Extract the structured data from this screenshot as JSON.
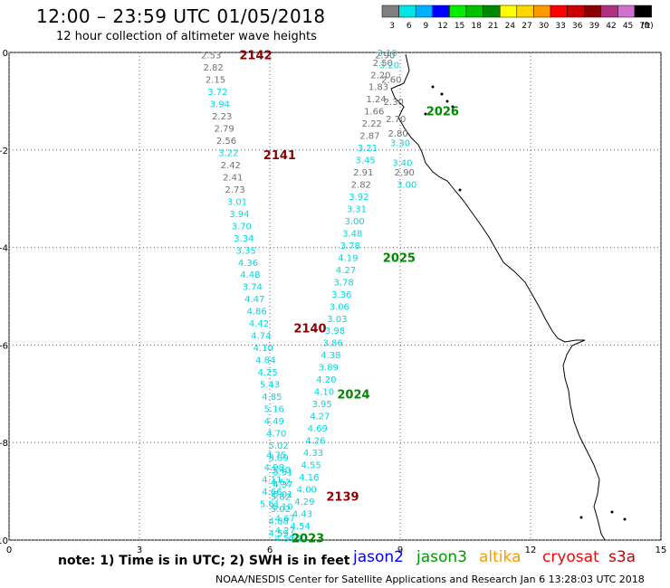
{
  "header": {
    "title": "12:00 – 23:59 UTC 01/05/2018",
    "subtitle": "12 hour collection of altimeter wave heights"
  },
  "footer": {
    "note": "note: 1) Time is in UTC; 2) SWH is in feet",
    "credit": "NOAA/NESDIS Center for Satellite Applications and Research   Jan  6 13:28:03 UTC 2018",
    "satellites": [
      {
        "name": "jason2",
        "color": "#0000ff"
      },
      {
        "name": "jason3",
        "color": "#009a00"
      },
      {
        "name": "altika",
        "color": "#ff9900"
      },
      {
        "name": "cryosat",
        "color": "#ff0000"
      },
      {
        "name": "s3a",
        "color": "#cc0000"
      }
    ]
  },
  "legend": {
    "unit": "(ft)",
    "bins": [
      {
        "label": "3",
        "color": "#808080"
      },
      {
        "label": "6",
        "color": "#00e5e5"
      },
      {
        "label": "9",
        "color": "#00b0ff"
      },
      {
        "label": "12",
        "color": "#0000ff"
      },
      {
        "label": "15",
        "color": "#00ee00"
      },
      {
        "label": "18",
        "color": "#00c000"
      },
      {
        "label": "21",
        "color": "#008800"
      },
      {
        "label": "24",
        "color": "#ffff00"
      },
      {
        "label": "27",
        "color": "#ffd700"
      },
      {
        "label": "30",
        "color": "#ff9900"
      },
      {
        "label": "33",
        "color": "#ff0000"
      },
      {
        "label": "36",
        "color": "#cc0000"
      },
      {
        "label": "39",
        "color": "#8b0000"
      },
      {
        "label": "42",
        "color": "#b03080"
      },
      {
        "label": "45",
        "color": "#d070d0"
      },
      {
        "label": "70",
        "color": "#000000"
      }
    ]
  },
  "chart_data": {
    "type": "scatter",
    "xlim": [
      0,
      15
    ],
    "ylim": [
      -10,
      0
    ],
    "x_ticks": [
      "0",
      "3",
      "6",
      "9",
      "12",
      "15"
    ],
    "y_ticks": [
      "0",
      "-2",
      "-4",
      "-6",
      "-8",
      "-10"
    ],
    "grid": true,
    "value_colors": {
      "low": "#707070",
      "high": "#00d8e0",
      "threshold": 3.0
    },
    "track_labels": [
      {
        "text": "2142",
        "color": "#8b0000",
        "x": 5.3,
        "y": -0.05
      },
      {
        "text": "2141",
        "color": "#8b0000",
        "x": 5.85,
        "y": -2.1
      },
      {
        "text": "2140",
        "color": "#8b0000",
        "x": 6.55,
        "y": -5.65
      },
      {
        "text": "2139",
        "color": "#8b0000",
        "x": 7.3,
        "y": -9.1
      },
      {
        "text": "2026",
        "color": "#008800",
        "x": 9.6,
        "y": -1.2
      },
      {
        "text": "2025",
        "color": "#008800",
        "x": 8.6,
        "y": -4.2
      },
      {
        "text": "2024",
        "color": "#008800",
        "x": 7.55,
        "y": -7.0
      },
      {
        "text": "2023",
        "color": "#008800",
        "x": 6.5,
        "y": -9.95
      }
    ],
    "series": [
      {
        "track": "descending",
        "x": [
          4.65,
          4.7,
          4.75,
          4.8,
          4.85,
          4.9,
          4.95,
          5.0,
          5.05,
          5.1,
          5.15,
          5.2,
          5.25,
          5.3,
          5.35,
          5.4,
          5.45,
          5.5,
          5.55,
          5.6,
          5.65,
          5.7,
          5.75,
          5.8,
          5.85,
          5.9,
          5.95,
          6.0,
          6.05,
          6.1,
          6.1,
          6.15,
          6.2,
          6.2,
          6.25,
          6.25,
          6.3,
          6.3,
          6.35,
          6.35,
          6.35,
          6.3,
          6.3,
          6.25,
          6.25,
          6.2,
          6.2,
          6.15,
          6.1,
          6.05,
          6.05,
          6.0
        ],
        "y": [
          -0.05,
          -0.3,
          -0.55,
          -0.8,
          -1.05,
          -1.3,
          -1.55,
          -1.8,
          -2.05,
          -2.3,
          -2.55,
          -2.8,
          -3.05,
          -3.3,
          -3.55,
          -3.8,
          -4.05,
          -4.3,
          -4.55,
          -4.8,
          -5.05,
          -5.3,
          -5.55,
          -5.8,
          -6.05,
          -6.3,
          -6.55,
          -6.8,
          -7.05,
          -7.3,
          -7.55,
          -7.8,
          -8.05,
          -8.3,
          -8.55,
          -8.8,
          -9.05,
          -9.3,
          -9.55,
          -9.8,
          -9.95,
          -8.6,
          -8.85,
          -9.1,
          -9.35,
          -9.6,
          -9.85,
          -8.25,
          -8.5,
          -8.75,
          -9.0,
          -9.25
        ],
        "values": [
          2.53,
          2.82,
          2.15,
          3.72,
          3.94,
          2.23,
          2.79,
          2.56,
          3.22,
          2.42,
          2.41,
          2.73,
          3.01,
          3.94,
          3.7,
          3.34,
          3.35,
          4.36,
          4.48,
          3.74,
          4.47,
          4.86,
          4.42,
          4.74,
          4.1,
          4.84,
          4.25,
          5.43,
          4.85,
          5.16,
          4.49,
          4.7,
          5.02,
          3.89,
          3.4,
          4.62,
          5.01,
          5.1,
          4.67,
          4.27,
          4.57,
          3.51,
          4.37,
          5.82,
          5.02,
          4.88,
          4.59,
          4.75,
          4.98,
          4.11,
          4.66,
          5.61
        ]
      },
      {
        "track": "ascending",
        "x": [
          6.65,
          6.7,
          6.75,
          6.8,
          6.85,
          6.9,
          6.95,
          7.0,
          7.05,
          7.1,
          7.15,
          7.2,
          7.25,
          7.3,
          7.35,
          7.4,
          7.45,
          7.5,
          7.55,
          7.6,
          7.65,
          7.7,
          7.75,
          7.8,
          7.85,
          7.9,
          7.95,
          8.0,
          8.05,
          8.1,
          8.15,
          8.2,
          8.25,
          8.3,
          8.35,
          8.4,
          8.45,
          8.5,
          8.55,
          8.6,
          8.65,
          8.7,
          8.75,
          8.8,
          8.85,
          8.9,
          8.95,
          9.0,
          9.05,
          9.1,
          9.15
        ],
        "y": [
          -9.95,
          -9.7,
          -9.45,
          -9.2,
          -8.95,
          -8.7,
          -8.45,
          -8.2,
          -7.95,
          -7.7,
          -7.45,
          -7.2,
          -6.95,
          -6.7,
          -6.45,
          -6.2,
          -5.95,
          -5.7,
          -5.45,
          -5.2,
          -4.95,
          -4.7,
          -4.45,
          -4.2,
          -3.95,
          -3.7,
          -3.45,
          -3.2,
          -2.95,
          -2.7,
          -2.45,
          -2.2,
          -1.95,
          -1.7,
          -1.45,
          -1.2,
          -0.95,
          -0.7,
          -0.45,
          -0.2,
          -0.05,
          0.0,
          -0.25,
          -0.55,
          -1.0,
          -1.35,
          -1.65,
          -1.85,
          -2.25,
          -2.45,
          -2.7
        ],
        "values": [
          4.12,
          4.54,
          4.43,
          4.29,
          4.0,
          4.16,
          4.55,
          4.33,
          4.26,
          4.69,
          4.27,
          3.95,
          4.1,
          4.2,
          3.89,
          4.38,
          3.86,
          3.98,
          3.03,
          3.06,
          3.36,
          3.78,
          4.27,
          4.19,
          3.78,
          3.48,
          3.0,
          3.31,
          3.92,
          2.82,
          2.91,
          3.45,
          3.21,
          2.87,
          2.22,
          1.66,
          1.24,
          1.83,
          2.2,
          2.5,
          2.9,
          3.1,
          3.2,
          2.6,
          2.3,
          2.7,
          2.8,
          3.3,
          3.4,
          2.9,
          3.0
        ]
      }
    ]
  }
}
